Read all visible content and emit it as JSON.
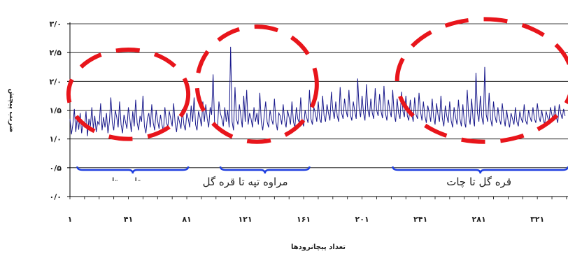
{
  "chart_data": {
    "type": "line",
    "title": "",
    "xlabel": "تعداد پیچانرودها",
    "ylabel": "ضریب پیچش",
    "ylim": [
      0,
      3
    ],
    "xlim": [
      1,
      342
    ],
    "grid": true,
    "y_ticks": [
      {
        "value": 0,
        "label": "۰/۰"
      },
      {
        "value": 0.5,
        "label": "۰/۵"
      },
      {
        "value": 1,
        "label": "۱/۰"
      },
      {
        "value": 1.5,
        "label": "۱/۵"
      },
      {
        "value": 2,
        "label": "۲/۰"
      },
      {
        "value": 2.5,
        "label": "۲/۵"
      },
      {
        "value": 3,
        "label": "۳/۰"
      }
    ],
    "x_ticks": [
      {
        "value": 1,
        "label": "۱"
      },
      {
        "value": 41,
        "label": "۴۱"
      },
      {
        "value": 81,
        "label": "۸۱"
      },
      {
        "value": 121,
        "label": "۱۲۱"
      },
      {
        "value": 161,
        "label": "۱۶۱"
      },
      {
        "value": 201,
        "label": "۲۰۱"
      },
      {
        "value": 241,
        "label": "۲۴۱"
      },
      {
        "value": 281,
        "label": "۲۸۱"
      },
      {
        "value": 321,
        "label": "۳۲۱"
      }
    ],
    "series": [
      {
        "color": "#1a1a8c",
        "values": [
          1.35,
          1.08,
          1.25,
          1.52,
          1.12,
          1.38,
          1.16,
          1.45,
          1.1,
          1.3,
          1.2,
          1.48,
          1.05,
          1.35,
          1.22,
          1.55,
          1.18,
          1.4,
          1.12,
          1.3,
          1.25,
          1.62,
          1.15,
          1.38,
          1.2,
          1.45,
          1.1,
          1.3,
          1.72,
          1.28,
          1.15,
          1.5,
          1.38,
          1.2,
          1.65,
          1.25,
          1.1,
          1.42,
          1.3,
          1.18,
          1.55,
          1.35,
          1.12,
          1.48,
          1.22,
          1.68,
          1.28,
          1.15,
          1.4,
          1.3,
          1.75,
          1.22,
          1.1,
          1.35,
          1.45,
          1.2,
          1.6,
          1.28,
          1.15,
          1.5,
          1.32,
          1.18,
          1.42,
          1.25,
          1.12,
          1.55,
          1.3,
          1.2,
          1.48,
          1.35,
          1.22,
          1.62,
          1.28,
          1.12,
          1.4,
          1.3,
          1.18,
          1.52,
          1.25,
          1.15,
          1.45,
          1.35,
          1.2,
          1.58,
          1.3,
          1.72,
          1.25,
          1.15,
          1.48,
          1.38,
          1.22,
          1.65,
          1.3,
          1.6,
          1.35,
          1.2,
          1.55,
          1.42,
          2.12,
          1.3,
          1.25,
          1.18,
          1.65,
          1.45,
          1.35,
          1.22,
          1.55,
          1.3,
          1.5,
          1.2,
          2.6,
          1.3,
          1.15,
          1.9,
          1.35,
          1.25,
          1.6,
          1.4,
          1.2,
          1.75,
          1.3,
          1.85,
          1.25,
          1.45,
          1.35,
          1.2,
          1.55,
          1.3,
          1.45,
          1.25,
          1.8,
          1.3,
          1.15,
          1.4,
          1.65,
          1.3,
          1.2,
          1.5,
          1.35,
          1.25,
          1.7,
          1.3,
          1.15,
          1.45,
          1.4,
          1.25,
          1.6,
          1.32,
          1.2,
          1.5,
          1.38,
          1.25,
          1.65,
          1.3,
          1.2,
          1.55,
          1.35,
          1.28,
          1.72,
          1.3,
          1.22,
          1.5,
          1.38,
          1.28,
          1.85,
          1.35,
          1.25,
          1.55,
          1.45,
          1.3,
          1.65,
          1.35,
          1.28,
          1.75,
          1.4,
          1.3,
          1.6,
          1.45,
          1.32,
          1.82,
          1.5,
          1.35,
          1.65,
          1.4,
          1.3,
          1.9,
          1.45,
          1.35,
          1.7,
          1.5,
          1.38,
          1.85,
          1.42,
          1.32,
          1.65,
          1.48,
          1.35,
          2.05,
          1.52,
          1.38,
          1.75,
          1.45,
          1.32,
          1.95,
          1.5,
          1.38,
          1.7,
          1.45,
          1.35,
          1.88,
          1.5,
          1.4,
          1.78,
          1.48,
          1.36,
          1.92,
          1.45,
          1.32,
          1.68,
          1.5,
          1.38,
          1.85,
          1.42,
          1.3,
          1.7,
          1.45,
          1.35,
          1.82,
          1.48,
          1.38,
          1.75,
          1.4,
          1.32,
          1.68,
          1.45,
          1.3,
          1.72,
          1.42,
          1.35,
          1.8,
          1.48,
          1.32,
          1.65,
          1.4,
          1.28,
          1.58,
          1.45,
          1.3,
          1.7,
          1.38,
          1.25,
          1.62,
          1.42,
          1.3,
          1.75,
          1.35,
          1.22,
          1.58,
          1.4,
          1.28,
          1.65,
          1.32,
          1.2,
          1.55,
          1.38,
          1.25,
          1.68,
          1.35,
          1.22,
          1.6,
          1.3,
          1.2,
          1.85,
          1.4,
          1.25,
          1.7,
          1.35,
          1.22,
          2.15,
          1.45,
          1.3,
          1.75,
          1.38,
          1.25,
          2.25,
          1.42,
          1.3,
          1.8,
          1.35,
          1.22,
          1.65,
          1.4,
          1.28,
          1.55,
          1.35,
          1.25,
          1.62,
          1.38,
          1.22,
          1.5,
          1.32,
          1.2,
          1.45,
          1.35,
          1.25,
          1.55,
          1.3,
          1.22,
          1.48,
          1.35,
          1.28,
          1.6,
          1.32,
          1.25,
          1.5,
          1.38,
          1.3,
          1.55,
          1.35,
          1.28,
          1.62,
          1.4,
          1.3,
          1.5,
          1.35,
          1.25,
          1.48,
          1.38,
          1.3,
          1.55,
          1.42,
          1.32,
          1.58,
          1.38,
          1.28,
          1.6,
          1.45,
          1.35,
          1.52,
          1.4
        ]
      }
    ],
    "annotations": {
      "region_labels": [
        {
          "label": "مراوه تپه تا قره گل",
          "x_center": 121
        },
        {
          "label": "قره گل تا چات",
          "x_center": 281
        }
      ],
      "partially_visible_label": "تا ... تا ...",
      "brackets": [
        {
          "from": 6,
          "to": 82
        },
        {
          "from": 104,
          "to": 165
        },
        {
          "from": 222,
          "to": 342
        }
      ],
      "ellipses": [
        {
          "from": 0,
          "to": 82,
          "y_low": 1.0,
          "y_high": 2.55
        },
        {
          "from": 88,
          "to": 170,
          "y_low": 0.95,
          "y_high": 2.95
        },
        {
          "from": 225,
          "to": 345,
          "y_low": 0.95,
          "y_high": 3.08
        }
      ]
    }
  }
}
